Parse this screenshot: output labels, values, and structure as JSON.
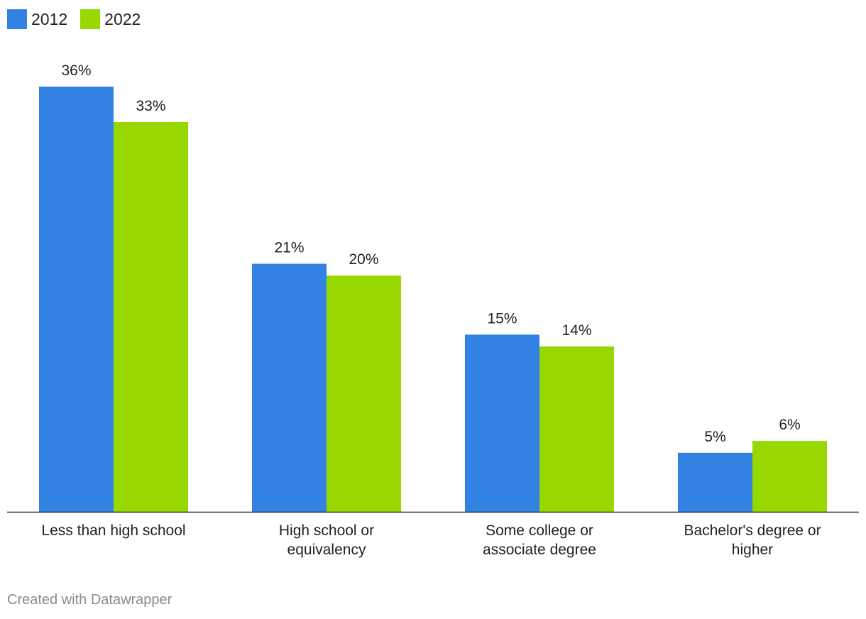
{
  "chart_data": {
    "type": "bar",
    "title": "",
    "xlabel": "",
    "ylabel": "",
    "categories": [
      [
        "Less than high school"
      ],
      [
        "High school or",
        "equivalency"
      ],
      [
        "Some college or",
        "associate degree"
      ],
      [
        "Bachelor's degree or",
        "higher"
      ]
    ],
    "series": [
      {
        "name": "2012",
        "color": "#3182e3",
        "values": [
          36,
          21,
          15,
          5
        ],
        "labels": [
          "36%",
          "21%",
          "15%",
          "5%"
        ]
      },
      {
        "name": "2022",
        "color": "#98d800",
        "values": [
          33,
          20,
          14,
          6
        ],
        "labels": [
          "33%",
          "20%",
          "14%",
          "6%"
        ]
      }
    ],
    "ylim": [
      0,
      36
    ],
    "grid": false,
    "legend_position": "top-left"
  },
  "footer": {
    "credit": "Created with Datawrapper"
  }
}
